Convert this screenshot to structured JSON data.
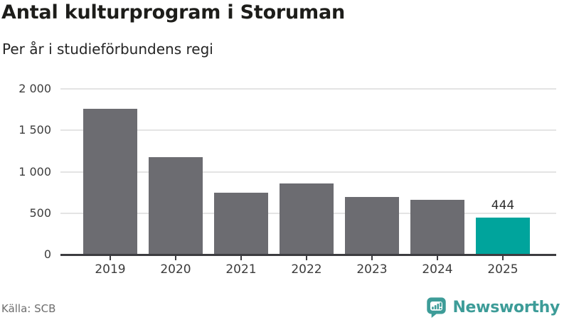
{
  "header": {
    "title": "Antal kulturprogram i Storuman",
    "subtitle": "Per år i studieförbundens regi"
  },
  "chart_data": {
    "type": "bar",
    "categories": [
      "2019",
      "2020",
      "2021",
      "2022",
      "2023",
      "2024",
      "2025"
    ],
    "values": [
      1760,
      1180,
      745,
      855,
      695,
      660,
      444
    ],
    "bar_labels": [
      "",
      "",
      "",
      "",
      "",
      "",
      "444"
    ],
    "highlight_index": 6,
    "title": "Antal kulturprogram i Storuman",
    "subtitle": "Per år i studieförbundens regi",
    "xlabel": "",
    "ylabel": "",
    "ylim": [
      0,
      2000
    ],
    "y_ticks": [
      {
        "value": 2000,
        "label": "2 000"
      },
      {
        "value": 1500,
        "label": "1 500"
      },
      {
        "value": 1000,
        "label": "1 000"
      },
      {
        "value": 500,
        "label": "500"
      },
      {
        "value": 0,
        "label": "0"
      }
    ],
    "grid": "horizontal",
    "legend": "none",
    "colors": {
      "bar": "#6c6c71",
      "highlight": "#00a49c",
      "gridline": "#e4e4e4",
      "axis": "#3c3c40",
      "value_label": "#2e2e2e"
    }
  },
  "footer": {
    "source": "Källa: SCB",
    "brand": "Newsworthy",
    "brand_color": "#3d9c98"
  }
}
